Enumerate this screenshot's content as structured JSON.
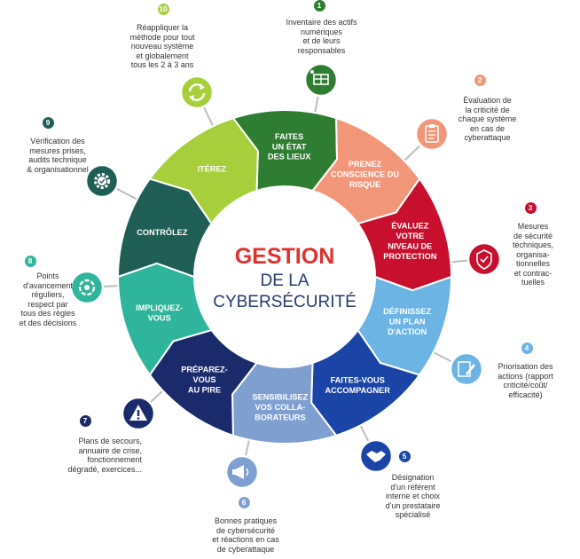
{
  "center": {
    "line1": "GESTION",
    "line2": "DE LA",
    "line3": "CYBERSÉCURITÉ",
    "color_accent": "#e2302b",
    "color_main": "#243a6e"
  },
  "steps": [
    {
      "number": "1",
      "label": [
        "FAITES",
        "UN ÉTAT",
        "DES LIEUX"
      ],
      "color": "#2e7d32",
      "icon": "inventory-boxes-icon",
      "description": [
        "Inventaire des actifs",
        "numériques",
        "et de leurs",
        "responsables"
      ]
    },
    {
      "number": "2",
      "label": [
        "PRENEZ",
        "CONSCIENCE DU",
        "RISQUE"
      ],
      "color": "#f2967a",
      "icon": "clipboard-checklist-icon",
      "description": [
        "Évaluation de",
        "la criticité de",
        "chaque système",
        "en cas de",
        "cyberattaque"
      ]
    },
    {
      "number": "3",
      "label": [
        "ÉVALUEZ",
        "VOTRE",
        "NIVEAU DE",
        "PROTECTION"
      ],
      "color": "#c8102e",
      "icon": "shield-check-icon",
      "description": [
        "Mesures",
        "de sécurité",
        "techniques,",
        "organisa-",
        "tionnelles",
        "et contrac-",
        "tuelles"
      ]
    },
    {
      "number": "4",
      "label": [
        "DÉFINISSEZ",
        "UN PLAN",
        "D'ACTION"
      ],
      "color": "#6cb4e4",
      "icon": "edit-pen-icon",
      "description": [
        "Priorisation des",
        "actions (rapport",
        "criticité/coût/",
        "efficacité)"
      ]
    },
    {
      "number": "5",
      "label": [
        "FAITES-VOUS",
        "ACCOMPAGNER"
      ],
      "color": "#1a44a5",
      "icon": "handshake-icon",
      "description": [
        "Désignation",
        "d'un référent",
        "interne et choix",
        "d'un prestataire",
        "spécialisé"
      ]
    },
    {
      "number": "6",
      "label": [
        "SENSIBILISEZ",
        "VOS COLLA-",
        "BORATEURS"
      ],
      "color": "#7f9fd0",
      "icon": "megaphone-icon",
      "description": [
        "Bonnes pratiques",
        "de cybersécurité",
        "et réactions en cas",
        "de cyberattaque"
      ]
    },
    {
      "number": "7",
      "label": [
        "PRÉPAREZ-",
        "VOUS",
        "AU PIRE"
      ],
      "color": "#1b2a6b",
      "icon": "warning-triangle-icon",
      "description": [
        "Plans de secours,",
        "annuaire de crise,",
        "fonctionnement",
        "dégradé, exercices..."
      ]
    },
    {
      "number": "8",
      "label": [
        "IMPLIQUEZ-",
        "VOUS"
      ],
      "color": "#2fb59b",
      "icon": "team-hands-icon",
      "description": [
        "Points",
        "d'avancement",
        "réguliers,",
        "respect par",
        "tous des règles",
        "et des décisions"
      ]
    },
    {
      "number": "9",
      "label": [
        "CONTRÔLEZ"
      ],
      "color": "#1e5e55",
      "icon": "gear-check-icon",
      "description": [
        "Vérification des",
        "mesures prises,",
        "audits technique",
        "& organisationnel"
      ]
    },
    {
      "number": "10",
      "label": [
        "ITÉREZ"
      ],
      "color": "#a6cf3b",
      "icon": "refresh-cycle-icon",
      "description": [
        "Réappliquer la",
        "méthode pour tout",
        "nouveau système",
        "et globalement",
        "tous les 2 à 3 ans"
      ]
    }
  ]
}
